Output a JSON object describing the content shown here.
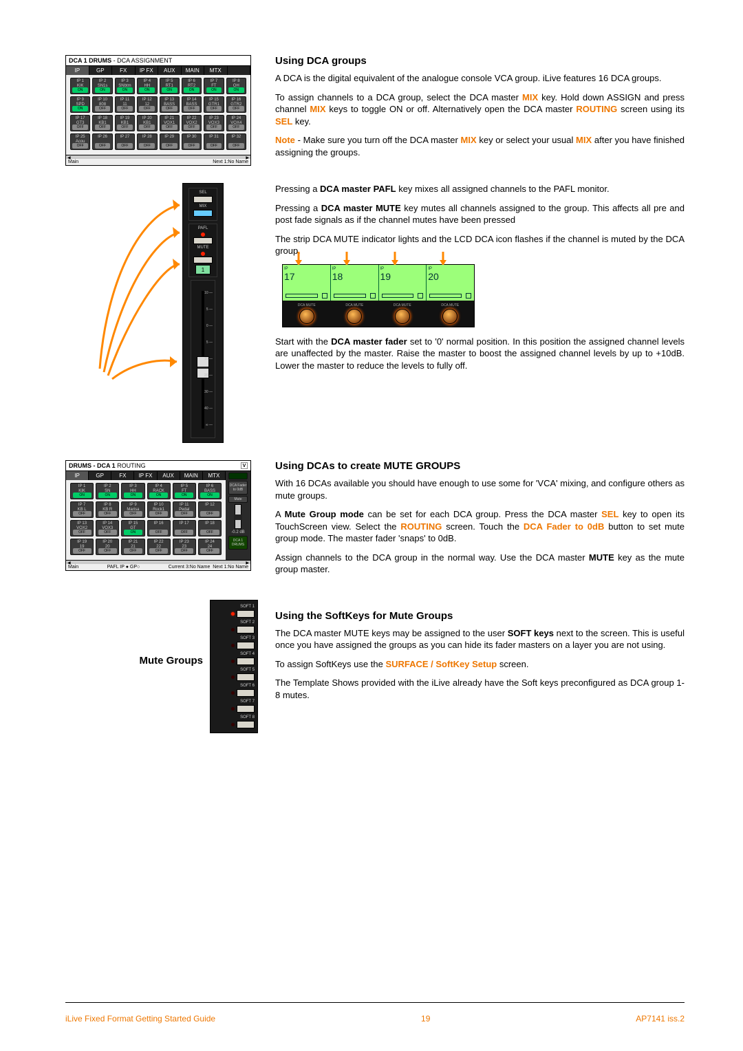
{
  "section1": {
    "heading": "Using DCA groups",
    "p1_a": "A DCA is the digital equivalent of the analogue console VCA group.  iLive features 16 DCA groups.",
    "p2_a": "To assign channels to a DCA group, select the DCA master ",
    "p2_mix1": "MIX",
    "p2_b": " key. Hold down ASSIGN and press channel ",
    "p2_mix2": "MIX",
    "p2_c": " keys to toggle ON or off.  Alternatively open the DCA master ",
    "p2_routing": "ROUTING",
    "p2_d": " screen using its ",
    "p2_sel": "SEL",
    "p2_e": " key.",
    "note_label": "Note",
    "note_a": " - Make sure you turn off the DCA master ",
    "note_mix1": "MIX",
    "note_b": " key or select your usual ",
    "note_mix2": "MIX",
    "note_c": " after you have finished assigning the groups.",
    "p4_a": "Pressing a ",
    "p4_b": "DCA master PAFL",
    "p4_c": " key mixes all assigned channels to the PAFL monitor.",
    "p5_a": "Pressing a ",
    "p5_b": "DCA master MUTE",
    "p5_c": " key mutes all channels assigned to the group.  This affects all pre and post fade signals as if the channel mutes have been pressed",
    "p6": "The strip DCA MUTE indicator lights and the LCD DCA icon flashes if the channel is muted by the DCA group.",
    "p7_a": "Start with the ",
    "p7_b": "DCA master fader",
    "p7_c": " set to '0' normal position. In this position the assigned channel levels are unaffected by the master.  Raise the master to boost the assigned channel levels by up to +10dB.  Lower the master to reduce the levels to fully off."
  },
  "section2": {
    "heading": "Using DCAs to create MUTE GROUPS",
    "p1": "With 16 DCAs available you should have enough to use some for 'VCA' mixing, and configure others as mute groups.",
    "p2_a": "A ",
    "p2_b": "Mute Group mode",
    "p2_c": " can be set for each DCA group.  Press the DCA master ",
    "p2_sel": "SEL",
    "p2_d": " key to open its TouchScreen view. Select the ",
    "p2_routing": "ROUTING",
    "p2_e": " screen.  Touch the ",
    "p2_fader": "DCA Fader to 0dB",
    "p2_f": " button to set mute group mode.  The master fader 'snaps' to 0dB.",
    "p3_a": "Assign channels to the DCA group in the normal way.  Use the DCA master ",
    "p3_b": "MUTE",
    "p3_c": " key as the mute group master."
  },
  "section3": {
    "heading": "Using the SoftKeys for Mute Groups",
    "mute_groups": "Mute Groups",
    "p1_a": "The DCA master MUTE keys may be assigned to the user ",
    "p1_b": "SOFT keys",
    "p1_c": " next to the screen. This is useful once you have assigned the groups as you can hide its fader masters on a layer you are not using.",
    "p2_a": "To assign SoftKeys use the ",
    "p2_b": "SURFACE / SoftKey Setup",
    "p2_c": " screen.",
    "p3": "The Template Shows provided with the iLive already have the Soft keys preconfigured as DCA group 1-8 mutes."
  },
  "panel1": {
    "title_bold": "DCA 1  DRUMS",
    "title_light": " - DCA ASSIGNMENT",
    "tabs": [
      "IP",
      "GP",
      "FX",
      "IP FX",
      "AUX",
      "MAIN",
      "MTX",
      ""
    ],
    "rows": [
      [
        {
          "l": "IP 1",
          "s": "KIK",
          "on": true
        },
        {
          "l": "IP 2",
          "s": "SN1s",
          "on": true
        },
        {
          "l": "IP 3",
          "s": "SNbtm",
          "on": true
        },
        {
          "l": "IP 4",
          "s": "HH",
          "on": true
        },
        {
          "l": "IP 5",
          "s": "RT1",
          "on": true
        },
        {
          "l": "IP 6",
          "s": "RT2",
          "on": true
        },
        {
          "l": "IP 7",
          "s": "FT",
          "on": true
        },
        {
          "l": "IP 8",
          "s": "OH",
          "on": true
        }
      ],
      [
        {
          "l": "IP 9",
          "s": "SPD",
          "on": true
        },
        {
          "l": "IP 10",
          "s": "808",
          "on": false
        },
        {
          "l": "IP 11",
          "s": "11",
          "on": false
        },
        {
          "l": "IP 12",
          "s": "12",
          "on": false
        },
        {
          "l": "IP 13",
          "s": "BASS",
          "on": false
        },
        {
          "l": "IP 14",
          "s": "BASS",
          "on": false
        },
        {
          "l": "IP 15",
          "s": "GTR1",
          "on": false
        },
        {
          "l": "IP 16",
          "s": "GTR2",
          "on": false
        }
      ],
      [
        {
          "l": "IP 17",
          "s": "GT3",
          "on": false
        },
        {
          "l": "IP 18",
          "s": "KB1",
          "on": false
        },
        {
          "l": "IP 19",
          "s": "KB1",
          "on": false
        },
        {
          "l": "IP 20",
          "s": "KB1",
          "on": false
        },
        {
          "l": "IP 21",
          "s": "VOX1",
          "on": false
        },
        {
          "l": "IP 22",
          "s": "VOX2",
          "on": false
        },
        {
          "l": "IP 23",
          "s": "VOX3",
          "on": false
        },
        {
          "l": "IP 24",
          "s": "VOX4",
          "on": false
        }
      ],
      [
        {
          "l": "IP 25",
          "s": "Acou",
          "on": false
        },
        {
          "l": "IP 26",
          "s": "",
          "on": false
        },
        {
          "l": "IP 27",
          "s": "",
          "on": false
        },
        {
          "l": "IP 28",
          "s": "",
          "on": false
        },
        {
          "l": "IP 29",
          "s": "",
          "on": false
        },
        {
          "l": "IP 30",
          "s": "",
          "on": false
        },
        {
          "l": "IP 31",
          "s": "",
          "on": false
        },
        {
          "l": "IP 32",
          "s": "",
          "on": false
        }
      ]
    ],
    "footer_l": "Main",
    "footer_r": "Next 1:No Name"
  },
  "panel2": {
    "title_bold": "DRUMS - DCA 1",
    "title_light": " ROUTING",
    "tabs": [
      "IP",
      "GP",
      "FX",
      "IP FX",
      "AUX",
      "MAIN",
      "MTX"
    ],
    "rows": [
      [
        {
          "l": "IP 1",
          "s": "KIK",
          "on": true
        },
        {
          "l": "IP 2",
          "s": "SN",
          "on": true
        },
        {
          "l": "IP 3",
          "s": "HH",
          "on": true
        },
        {
          "l": "IP 4",
          "s": "RACK",
          "on": true
        },
        {
          "l": "IP 5",
          "s": "FT",
          "on": true
        },
        {
          "l": "IP 6",
          "s": "BASS",
          "on": true
        }
      ],
      [
        {
          "l": "IP 7",
          "s": "KB L",
          "on": false
        },
        {
          "l": "IP 8",
          "s": "KB R",
          "on": false
        },
        {
          "l": "IP 9",
          "s": "Marisa",
          "on": false
        },
        {
          "l": "IP 10",
          "s": "Rock1",
          "on": false
        },
        {
          "l": "IP 11",
          "s": "Pedal",
          "on": false
        },
        {
          "l": "IP 12",
          "s": "",
          "on": false
        }
      ],
      [
        {
          "l": "IP 13",
          "s": "VOX2",
          "on": false
        },
        {
          "l": "IP 14",
          "s": "VOX3",
          "on": false
        },
        {
          "l": "IP 15",
          "s": "GT",
          "on": true
        },
        {
          "l": "IP 16",
          "s": "",
          "on": false
        },
        {
          "l": "IP 17",
          "s": "",
          "on": false
        },
        {
          "l": "IP 18",
          "s": "",
          "on": false
        }
      ],
      [
        {
          "l": "IP 19",
          "s": "19",
          "on": false
        },
        {
          "l": "IP 20",
          "s": "20",
          "on": false
        },
        {
          "l": "IP 21",
          "s": "21",
          "on": false
        },
        {
          "l": "IP 22",
          "s": "22",
          "on": false
        },
        {
          "l": "IP 23",
          "s": "23",
          "on": false
        },
        {
          "l": "IP 24",
          "s": "24",
          "on": false
        }
      ]
    ],
    "side": {
      "dca_fader": "DCA Fader to 0dB",
      "mute": "Mute",
      "val": "-0.2 dB",
      "dca": "DCA 1 DRUMS"
    },
    "footer_l": "Main",
    "footer_m": "PAFL IP ● GP○",
    "footer_r1": "Current 3:No Name",
    "footer_r2": "Next 1:No Name"
  },
  "fader": {
    "sel": "SEL",
    "mix": "MIX",
    "pafl": "PAFL",
    "mute": "MUTE",
    "num": "1",
    "scale": [
      "10",
      "5",
      "0",
      "5",
      "10",
      "20",
      "30",
      "40",
      "∞"
    ]
  },
  "lcd": {
    "chs": [
      {
        "ip": "IP",
        "n": "17"
      },
      {
        "ip": "IP",
        "n": "18"
      },
      {
        "ip": "IP",
        "n": "19"
      },
      {
        "ip": "IP",
        "n": "20"
      }
    ],
    "mute_label": "DCA MUTE",
    "states": [
      true,
      true,
      true,
      true
    ]
  },
  "softkeys": {
    "items": [
      {
        "l": "SOFT 1",
        "lit": true
      },
      {
        "l": "SOFT 2",
        "lit": false
      },
      {
        "l": "SOFT 3",
        "lit": false
      },
      {
        "l": "SOFT 4",
        "lit": false
      },
      {
        "l": "SOFT 5",
        "lit": false
      },
      {
        "l": "SOFT 6",
        "lit": false
      },
      {
        "l": "SOFT 7",
        "lit": false
      },
      {
        "l": "SOFT 8",
        "lit": false
      }
    ]
  },
  "footer": {
    "left_orange": "iLive",
    "left_rest": " Fixed Format   Getting Started Guide",
    "page": "19",
    "right": "AP7141 iss.2"
  }
}
